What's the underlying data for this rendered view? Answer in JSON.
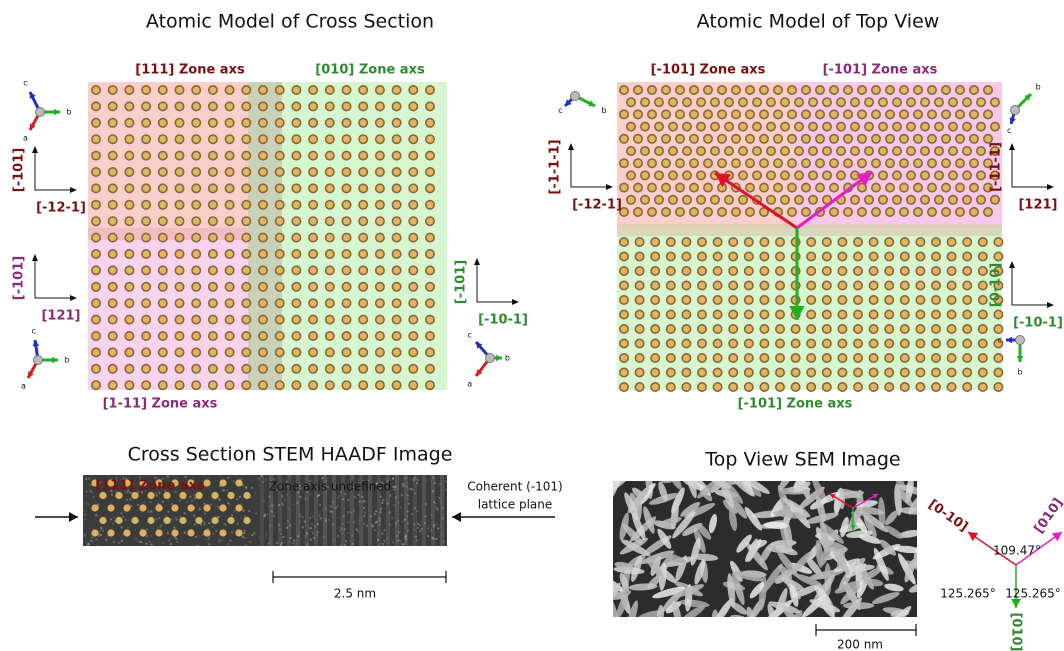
{
  "panels": [
    {
      "title": "Atomic Model of Cross Section",
      "zones": [
        "[111] Zone axs",
        "[010] Zone axs",
        "[1-11] Zone axs"
      ],
      "axes": [
        {
          "vertical": "[-101]",
          "horizontal": "[-12-1]"
        },
        {
          "vertical": "[-101]",
          "horizontal": "[121]"
        },
        {
          "vertical": "[-101]",
          "horizontal": "[-10-1]"
        }
      ],
      "triads": [
        [
          "c",
          "b",
          "a"
        ],
        [
          "c",
          "b",
          "a"
        ],
        [
          "c",
          "b",
          "a"
        ]
      ]
    },
    {
      "title": "Atomic Model of Top View",
      "zones": [
        "[-101] Zone axs",
        "[-101] Zone axs",
        "[-101] Zone axs"
      ],
      "axes": [
        {
          "vertical": "[-1-1-1]",
          "horizontal": "[-12-1]"
        },
        {
          "vertical": "[-11-1]",
          "horizontal": "[121]"
        },
        {
          "vertical": "[0-10]",
          "horizontal": "[-10-1]"
        }
      ],
      "triads": [
        [
          "c",
          "b"
        ],
        [
          "b",
          "c"
        ],
        [
          "c",
          "b"
        ]
      ]
    },
    {
      "title": "Cross Section STEM HAADF Image",
      "zone": "[111] Zone axs",
      "zone_note": "Zone axis undefined",
      "note": [
        "Coherent (-101)",
        "lattice plane"
      ],
      "scale": "2.5 nm"
    },
    {
      "title": "Top View SEM Image",
      "scale": "200 nm",
      "directions": [
        "[0-10]",
        "[010]",
        "[010]"
      ],
      "angles": [
        "109.47°",
        "125.265°",
        "125.265°"
      ]
    }
  ]
}
